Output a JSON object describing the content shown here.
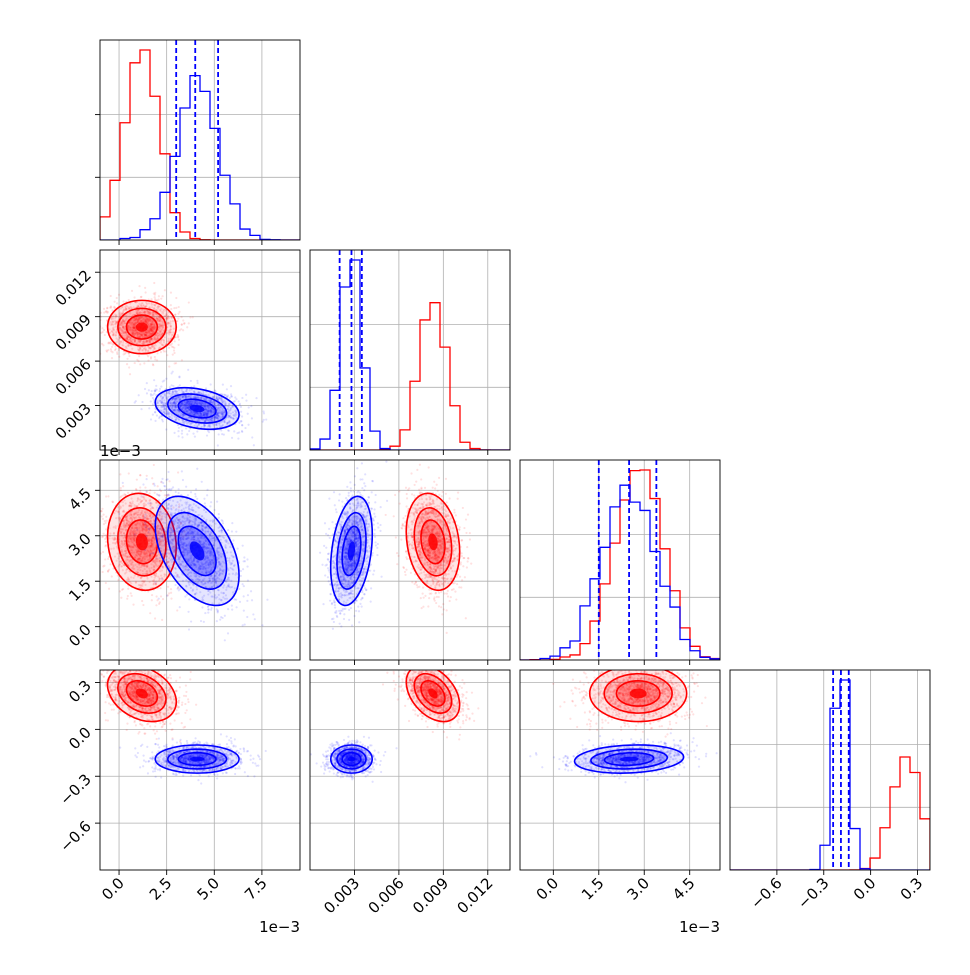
{
  "chart_data": {
    "type": "corner",
    "colors": {
      "red_series": "#ff0000",
      "blue_series": "#0000ff"
    },
    "grid": true,
    "n_params": 4,
    "dims": [
      {
        "range": [
          -0.001,
          0.0095
        ],
        "ticks": [
          0.0,
          0.0025,
          0.005,
          0.0075
        ],
        "tick_labels": [
          "0.0",
          "2.5",
          "5.0",
          "7.5"
        ],
        "offset_label": "1e−3"
      },
      {
        "range": [
          0.0,
          0.0135
        ],
        "ticks": [
          0.003,
          0.006,
          0.009,
          0.012
        ],
        "tick_labels": [
          "0.003",
          "0.006",
          "0.009",
          "0.012"
        ],
        "offset_label": ""
      },
      {
        "range": [
          -0.0011,
          0.0055
        ],
        "ticks": [
          0.0,
          0.0015,
          0.003,
          0.0045
        ],
        "tick_labels": [
          "0.0",
          "1.5",
          "3.0",
          "4.5"
        ],
        "offset_label": "1e−3"
      },
      {
        "range": [
          -0.9,
          0.38
        ],
        "ticks": [
          -0.6,
          -0.3,
          0.0,
          0.3
        ],
        "tick_labels": [
          "−0.6",
          "−0.3",
          "0.0",
          "0.3"
        ],
        "offset_label": ""
      }
    ],
    "series": [
      {
        "color": "#ff0000",
        "mean": [
          0.0012,
          0.0083,
          0.0028,
          0.23
        ],
        "std": [
          0.0009,
          0.0009,
          0.0008,
          0.09
        ],
        "corr": {
          "0-1": 0.0,
          "0-2": -0.1,
          "0-3": -0.3,
          "1-2": -0.2,
          "1-3": -0.4,
          "2-3": 0.0
        }
      },
      {
        "color": "#0000ff",
        "mean": [
          0.0041,
          0.0028,
          0.0025,
          -0.19
        ],
        "std": [
          0.0011,
          0.0007,
          0.0009,
          0.045
        ],
        "corr": {
          "0-1": -0.3,
          "0-2": -0.45,
          "0-3": 0.0,
          "1-2": 0.3,
          "1-3": 0.0,
          "2-3": 0.15
        },
        "quantiles": [
          [
            0.003,
            0.004,
            0.0052
          ],
          [
            0.002,
            0.0028,
            0.0035
          ],
          [
            0.0015,
            0.0025,
            0.0034
          ],
          [
            -0.24,
            -0.19,
            -0.14
          ]
        ]
      }
    ]
  }
}
